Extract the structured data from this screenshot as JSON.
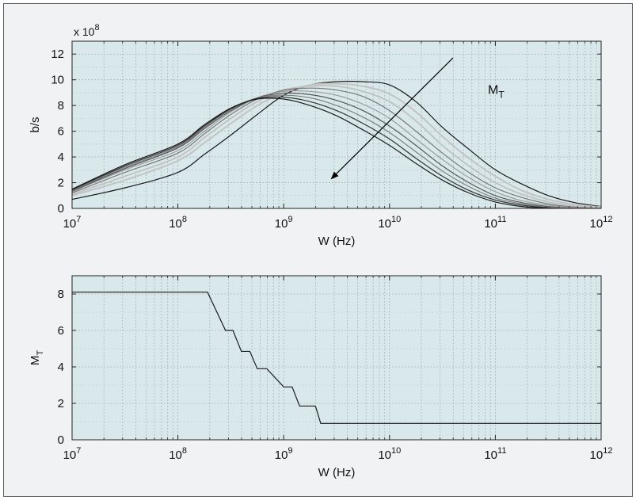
{
  "figure": {
    "colors": {
      "plot_bg": "#d9e9eb",
      "grid": "#a9b9bb",
      "axis": "#222222",
      "arrow": "#000000"
    }
  },
  "chart_data": [
    {
      "type": "line",
      "title": "",
      "xlabel": "W (Hz)",
      "ylabel": "b/s",
      "y_multiplier": "x 10",
      "y_multiplier_exp": "8",
      "x_scale": "log",
      "xlim": [
        10000000,
        1000000000000
      ],
      "ylim": [
        0,
        13
      ],
      "x_ticks": [
        {
          "base": "10",
          "exp": "7"
        },
        {
          "base": "10",
          "exp": "8"
        },
        {
          "base": "10",
          "exp": "9"
        },
        {
          "base": "10",
          "exp": "10"
        },
        {
          "base": "10",
          "exp": "11"
        },
        {
          "base": "10",
          "exp": "12"
        }
      ],
      "y_ticks": [
        "0",
        "2",
        "4",
        "6",
        "8",
        "10",
        "12"
      ],
      "grid": true,
      "annotation": {
        "text": "M",
        "sub": "T",
        "direction": "decreasing M_T shifts peak left"
      },
      "series_log10_x": [
        7,
        7.5,
        8,
        8.25,
        8.5,
        8.75,
        9,
        9.25,
        9.5,
        9.75,
        10,
        10.25,
        10.5,
        10.75,
        11,
        11.25,
        11.5,
        11.75,
        12
      ],
      "series": [
        {
          "color": "#1a1a1a",
          "values": [
            0.7,
            1.6,
            2.8,
            4.2,
            5.7,
            7.3,
            8.8,
            9.6,
            9.85,
            9.85,
            9.6,
            8.3,
            6.3,
            4.6,
            3.0,
            1.9,
            1.0,
            0.45,
            0.15
          ]
        },
        {
          "color": "#c3c3c3",
          "values": [
            1.0,
            2.2,
            3.7,
            5.1,
            6.6,
            8.0,
            9.0,
            9.6,
            9.7,
            9.5,
            8.9,
            7.5,
            5.6,
            3.9,
            2.5,
            1.4,
            0.7,
            0.3,
            0.1
          ]
        },
        {
          "color": "#c3c3c3",
          "values": [
            1.1,
            2.5,
            4.0,
            5.5,
            7.0,
            8.3,
            9.2,
            9.5,
            9.5,
            9.1,
            8.3,
            6.8,
            4.9,
            3.3,
            2.0,
            1.1,
            0.5,
            0.2,
            0.05
          ]
        },
        {
          "color": "#777777",
          "values": [
            1.2,
            2.8,
            4.3,
            5.8,
            7.3,
            8.5,
            9.2,
            9.35,
            9.2,
            8.7,
            7.6,
            6.0,
            4.3,
            2.8,
            1.6,
            0.85,
            0.35,
            0.1,
            0.0
          ]
        },
        {
          "color": "#9a9a9a",
          "values": [
            1.3,
            3.0,
            4.5,
            6.0,
            7.5,
            8.6,
            9.1,
            9.1,
            8.8,
            8.1,
            7.0,
            5.4,
            3.8,
            2.4,
            1.3,
            0.6,
            0.25,
            0.05,
            0.0
          ]
        },
        {
          "color": "#555555",
          "values": [
            1.35,
            3.1,
            4.7,
            6.2,
            7.6,
            8.6,
            8.95,
            8.85,
            8.4,
            7.6,
            6.4,
            4.9,
            3.3,
            2.0,
            1.0,
            0.45,
            0.15,
            0.0,
            0.0
          ]
        },
        {
          "color": "#808080",
          "values": [
            1.4,
            3.2,
            4.8,
            6.3,
            7.7,
            8.6,
            8.8,
            8.6,
            8.0,
            7.1,
            5.9,
            4.4,
            2.9,
            1.7,
            0.8,
            0.35,
            0.1,
            0.0,
            0.0
          ]
        },
        {
          "color": "#333333",
          "values": [
            1.45,
            3.3,
            4.9,
            6.4,
            7.75,
            8.55,
            8.65,
            8.3,
            7.6,
            6.6,
            5.4,
            3.9,
            2.5,
            1.4,
            0.65,
            0.25,
            0.05,
            -0.05,
            0.0
          ]
        },
        {
          "color": "#1a1a1a",
          "values": [
            1.5,
            3.4,
            5.0,
            6.5,
            7.8,
            8.5,
            8.5,
            8.0,
            7.2,
            6.1,
            4.9,
            3.5,
            2.2,
            1.2,
            0.5,
            0.15,
            0.0,
            -0.1,
            0.0
          ]
        }
      ]
    },
    {
      "type": "line",
      "title": "",
      "xlabel": "W (Hz)",
      "ylabel": "M",
      "ylabel_sub": "T",
      "x_scale": "log",
      "xlim": [
        10000000,
        1000000000000
      ],
      "ylim": [
        0,
        9
      ],
      "x_ticks": [
        {
          "base": "10",
          "exp": "7"
        },
        {
          "base": "10",
          "exp": "8"
        },
        {
          "base": "10",
          "exp": "9"
        },
        {
          "base": "10",
          "exp": "10"
        },
        {
          "base": "10",
          "exp": "11"
        },
        {
          "base": "10",
          "exp": "12"
        }
      ],
      "y_ticks": [
        "0",
        "2",
        "4",
        "6",
        "8"
      ],
      "grid": true,
      "series_log10_x": [
        7,
        8.28,
        8.45,
        8.52,
        8.6,
        8.68,
        8.75,
        8.84,
        9.0,
        9.08,
        9.15,
        9.3,
        9.35
      ],
      "series": [
        {
          "color": "#1a1a1a",
          "values": [
            8.1,
            8.1,
            6.0,
            6.0,
            4.85,
            4.85,
            3.9,
            3.9,
            2.9,
            2.9,
            1.85,
            1.85,
            0.9
          ],
          "last_x_log10": 12,
          "last_value": 0.9
        }
      ]
    }
  ]
}
